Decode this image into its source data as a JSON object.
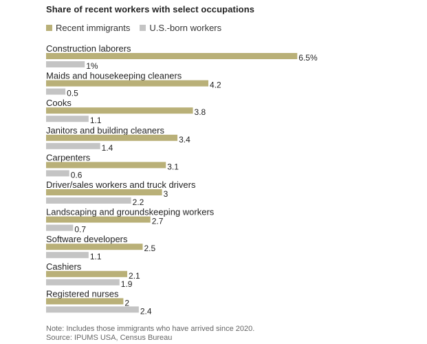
{
  "chart_data": {
    "type": "bar",
    "title": "Share of recent workers with select occupations",
    "categories": [
      "Construction laborers",
      "Maids and housekeeping cleaners",
      "Cooks",
      "Janitors and building cleaners",
      "Carpenters",
      "Driver/sales workers and truck drivers",
      "Landscaping and groundskeeping workers",
      "Software developers",
      "Cashiers",
      "Registered nurses"
    ],
    "series": [
      {
        "name": "Recent immigrants",
        "color": "#b9b078",
        "values": [
          6.5,
          4.2,
          3.8,
          3.4,
          3.1,
          3,
          2.7,
          2.5,
          2.1,
          2
        ],
        "labels": [
          "6.5%",
          "4.2",
          "3.8",
          "3.4",
          "3.1",
          "3",
          "2.7",
          "2.5",
          "2.1",
          "2"
        ]
      },
      {
        "name": "U.S.-born workers",
        "color": "#c4c4c4",
        "values": [
          1,
          0.5,
          1.1,
          1.4,
          0.6,
          2.2,
          0.7,
          1.1,
          1.9,
          2.4
        ],
        "labels": [
          "1%",
          "0.5",
          "1.1",
          "1.4",
          "0.6",
          "2.2",
          "0.7",
          "1.1",
          "1.9",
          "2.4"
        ]
      }
    ],
    "orientation": "horizontal",
    "unit": "%",
    "grid": false,
    "legend_position": "top-left"
  },
  "footer": {
    "note": "Note: Includes those immigrants who have arrived since 2020.",
    "source": "Source: IPUMS USA, Census Bureau"
  }
}
